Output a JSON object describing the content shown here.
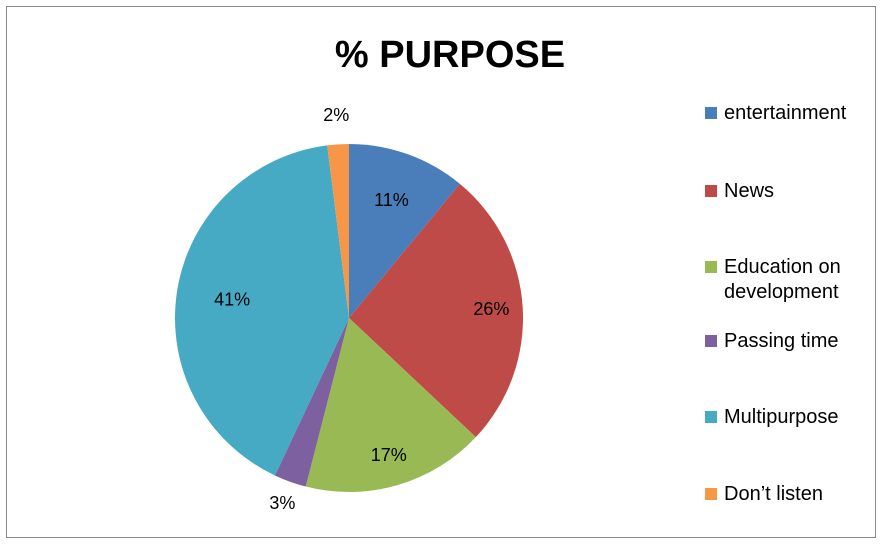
{
  "chart_data": {
    "type": "pie",
    "title": "% PURPOSE",
    "categories": [
      "entertainment",
      "News",
      "Education on development",
      "Passing time",
      "Multipurpose",
      "Don’t listen"
    ],
    "values": [
      11,
      26,
      17,
      3,
      41,
      2
    ],
    "data_labels": [
      "11%",
      "26%",
      "17%",
      "3%",
      "41%",
      "2%"
    ],
    "colors": [
      "#4a7ebb",
      "#be4b48",
      "#98b954",
      "#7d60a0",
      "#46aac5",
      "#f79646"
    ],
    "legend_position": "right",
    "start_angle": "12 o'clock",
    "direction": "clockwise"
  },
  "legend": {
    "items": [
      {
        "label": "entertainment",
        "color": "#4a7ebb"
      },
      {
        "label": "News",
        "color": "#be4b48"
      },
      {
        "label": "Education on development",
        "color": "#98b954"
      },
      {
        "label": "Passing time",
        "color": "#7d60a0"
      },
      {
        "label": "Multipurpose",
        "color": "#46aac5"
      },
      {
        "label": "Don’t listen",
        "color": "#f79646"
      }
    ]
  }
}
